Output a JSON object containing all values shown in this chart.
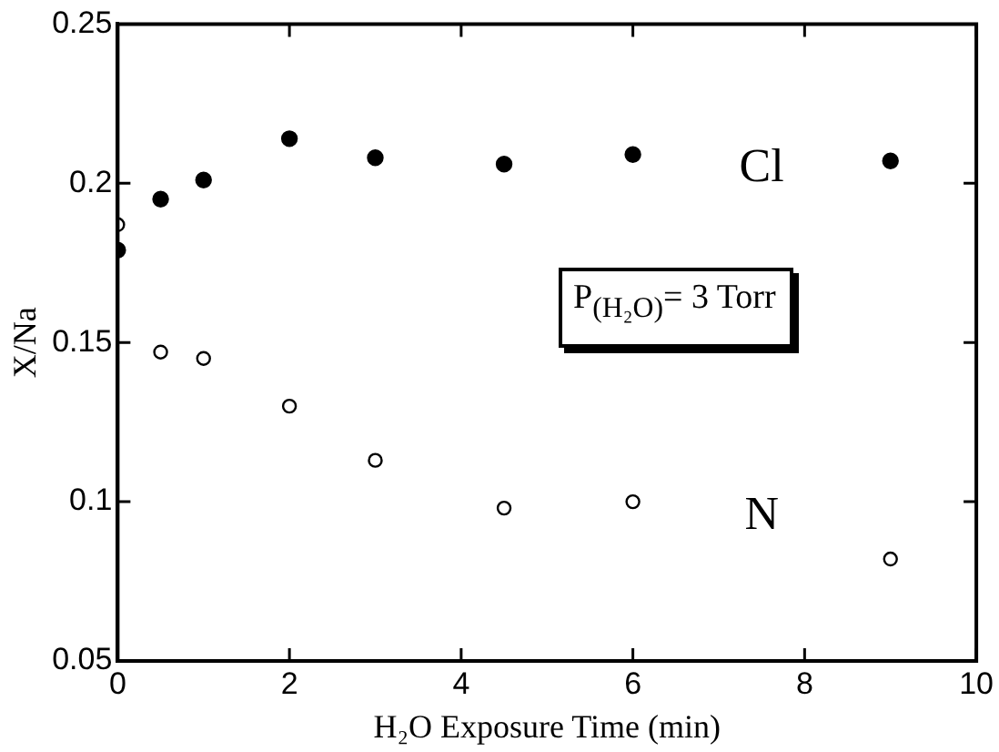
{
  "chart_data": {
    "type": "scatter",
    "xlabel": "H₂O Exposure Time (min)",
    "ylabel": "X/Na",
    "x": [
      0,
      0.5,
      1,
      2,
      3,
      4.5,
      6,
      9
    ],
    "series": [
      {
        "name": "Cl",
        "color": "#000000",
        "values": [
          0.179,
          0.195,
          0.201,
          0.214,
          0.208,
          0.206,
          0.209,
          0.207
        ]
      },
      {
        "name": "N",
        "color": "#000000",
        "values": [
          0.187,
          0.147,
          0.145,
          0.13,
          0.113,
          0.098,
          0.1,
          0.082
        ]
      }
    ],
    "xlim": [
      0,
      10
    ],
    "xticks": [
      0,
      2,
      4,
      6,
      8,
      10
    ],
    "ylim": [
      0.05,
      0.25
    ],
    "yticks": [
      0.05,
      0.1,
      0.15,
      0.2,
      0.25
    ],
    "annotations": [
      "P$_{(H₂O)}$= 3 Torr"
    ],
    "marker": "circle",
    "grid": false,
    "legend": false
  }
}
